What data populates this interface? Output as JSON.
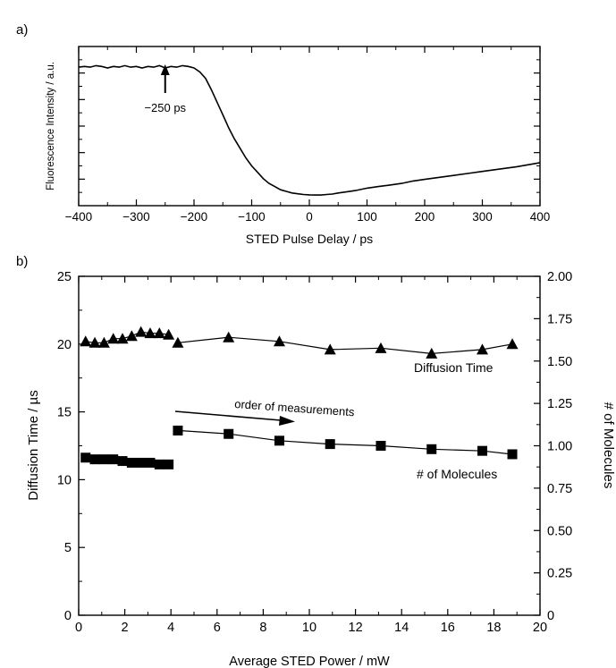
{
  "chart_data": [
    {
      "panel_label": "a)",
      "type": "line",
      "xlabel": "STED Pulse Delay / ps",
      "ylabel": "Fluorescence Intensity / a.u.",
      "xlim": [
        -400,
        400
      ],
      "ylim": [
        0,
        1
      ],
      "xticks": [
        -400,
        -300,
        -200,
        -100,
        0,
        100,
        200,
        300,
        400
      ],
      "ytick_labels_shown": false,
      "y_units": "relative (0 = axis bottom, 1 = axis top)",
      "series": [
        {
          "x": [
            -400,
            -390,
            -380,
            -370,
            -360,
            -350,
            -340,
            -330,
            -320,
            -310,
            -300,
            -290,
            -280,
            -270,
            -260,
            -250,
            -240,
            -230,
            -220,
            -210,
            -200,
            -190,
            -180,
            -170,
            -160,
            -150,
            -140,
            -130,
            -120,
            -110,
            -100,
            -90,
            -80,
            -70,
            -60,
            -50,
            -40,
            -30,
            -20,
            -10,
            0,
            10,
            20,
            30,
            40,
            50,
            60,
            80,
            100,
            120,
            140,
            160,
            180,
            200,
            220,
            250,
            280,
            300,
            330,
            360,
            400
          ],
          "y": [
            0.87,
            0.875,
            0.87,
            0.88,
            0.875,
            0.865,
            0.875,
            0.87,
            0.88,
            0.87,
            0.875,
            0.865,
            0.875,
            0.87,
            0.88,
            0.865,
            0.875,
            0.87,
            0.88,
            0.875,
            0.865,
            0.84,
            0.8,
            0.73,
            0.65,
            0.57,
            0.49,
            0.42,
            0.36,
            0.3,
            0.25,
            0.21,
            0.17,
            0.14,
            0.12,
            0.1,
            0.09,
            0.08,
            0.075,
            0.07,
            0.068,
            0.067,
            0.067,
            0.07,
            0.073,
            0.08,
            0.085,
            0.095,
            0.11,
            0.12,
            0.13,
            0.14,
            0.155,
            0.165,
            0.175,
            0.19,
            0.205,
            0.215,
            0.23,
            0.245,
            0.27
          ]
        }
      ],
      "annotations": [
        {
          "text": "−250 ps",
          "x": -250,
          "arrow": "up"
        }
      ]
    },
    {
      "panel_label": "b)",
      "type": "line",
      "xlabel": "Average STED Power / mW",
      "ylabel": "Diffusion Time / µs",
      "ylabel_right": "# of Molecules",
      "xlim": [
        0,
        20
      ],
      "ylim": [
        0,
        25
      ],
      "ylim_right": [
        0,
        2.0
      ],
      "xticks": [
        0,
        2,
        4,
        6,
        8,
        10,
        12,
        14,
        16,
        18,
        20
      ],
      "yticks": [
        0,
        5,
        10,
        15,
        20,
        25
      ],
      "yticks_right": [
        "0",
        "0.25",
        "0.50",
        "0.75",
        "1.00",
        "1.25",
        "1.50",
        "1.75",
        "2.00"
      ],
      "series": [
        {
          "name": "Diffusion Time",
          "marker": "triangle",
          "axis": "left",
          "segments": [
            {
              "x": [
                0.3,
                0.7,
                1.1,
                1.5,
                1.9,
                2.3,
                2.7,
                3.1,
                3.5,
                3.9
              ],
              "y": [
                20.2,
                20.1,
                20.1,
                20.4,
                20.4,
                20.6,
                20.9,
                20.8,
                20.8,
                20.7
              ]
            },
            {
              "x": [
                4.3,
                6.5,
                8.7,
                10.9,
                13.1,
                15.3,
                17.5,
                18.8
              ],
              "y": [
                20.1,
                20.5,
                20.2,
                19.6,
                19.7,
                19.3,
                19.6,
                20.0
              ]
            }
          ]
        },
        {
          "name": "# of Molecules",
          "marker": "square",
          "axis": "right",
          "segments": [
            {
              "x": [
                0.3,
                0.7,
                1.1,
                1.5,
                1.9,
                2.3,
                2.7,
                3.1,
                3.5,
                3.9
              ],
              "y": [
                0.93,
                0.92,
                0.92,
                0.92,
                0.91,
                0.9,
                0.9,
                0.9,
                0.89,
                0.89
              ]
            },
            {
              "x": [
                4.3,
                6.5,
                8.7,
                10.9,
                13.1,
                15.3,
                17.5,
                18.8
              ],
              "y": [
                1.09,
                1.07,
                1.03,
                1.01,
                1.0,
                0.98,
                0.97,
                0.95
              ]
            }
          ]
        }
      ],
      "annotations": [
        {
          "text": "order of measurements",
          "arrow": "right"
        },
        {
          "text": "Diffusion Time"
        },
        {
          "text": "# of Molecules"
        }
      ]
    }
  ]
}
